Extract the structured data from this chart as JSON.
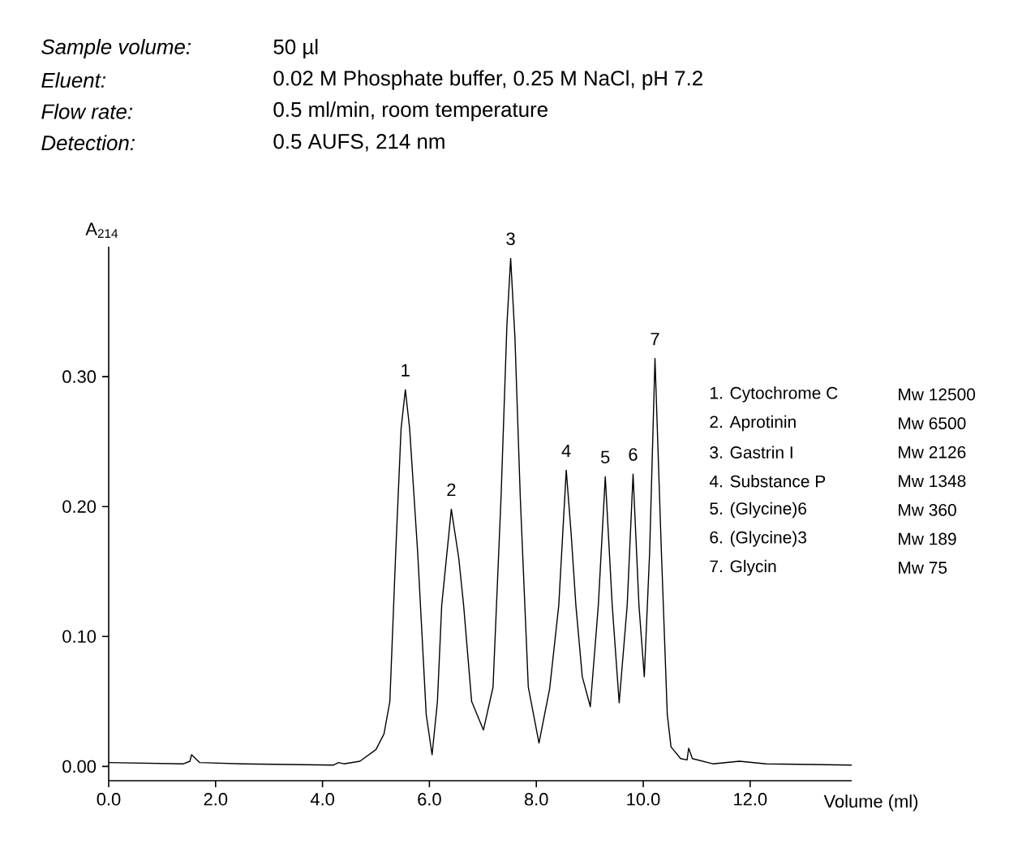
{
  "chart_data": {
    "type": "line",
    "ylabel": "A$_{214}$",
    "xlabel": "Volume (ml)",
    "xlim": [
      0,
      13.9
    ],
    "ylim": [
      -0.011,
      0.4
    ],
    "xticks": [
      {
        "value": 0,
        "label": "0.0"
      },
      {
        "value": 2,
        "label": "2.0"
      },
      {
        "value": 4,
        "label": "4.0"
      },
      {
        "value": 6,
        "label": "6.0"
      },
      {
        "value": 8,
        "label": "8.0"
      },
      {
        "value": 10,
        "label": "10.0"
      },
      {
        "value": 12,
        "label": "12.0"
      }
    ],
    "yticks": [
      {
        "value": 0,
        "label": "0.00"
      },
      {
        "value": 0.1,
        "label": "0.10"
      },
      {
        "value": 0.2,
        "label": "0.20"
      },
      {
        "value": 0.3,
        "label": "0.30"
      }
    ],
    "grid": false,
    "x": [
      0,
      1.4,
      1.52,
      1.55,
      1.7,
      2.5,
      4.2,
      4.3,
      4.4,
      4.7,
      5.0,
      5.15,
      5.26,
      5.37,
      5.47,
      5.55,
      5.63,
      5.78,
      5.94,
      6.05,
      6.15,
      6.23,
      6.41,
      6.55,
      6.64,
      6.79,
      7.01,
      7.19,
      7.34,
      7.45,
      7.52,
      7.6,
      7.7,
      7.85,
      8.05,
      8.25,
      8.42,
      8.56,
      8.65,
      8.74,
      8.86,
      9.01,
      9.16,
      9.29,
      9.42,
      9.55,
      9.7,
      9.81,
      9.92,
      10.02,
      10.12,
      10.22,
      10.34,
      10.45,
      10.52,
      10.7,
      10.82,
      10.85,
      10.92,
      11.3,
      11.8,
      12.3,
      13.9
    ],
    "series": [
      {
        "color": "#000000",
        "values": [
          0.003,
          0.002,
          0.004,
          0.009,
          0.003,
          0.002,
          0.001,
          0.003,
          0.002,
          0.004,
          0.013,
          0.025,
          0.05,
          0.165,
          0.26,
          0.29,
          0.26,
          0.165,
          0.04,
          0.009,
          0.05,
          0.124,
          0.198,
          0.16,
          0.124,
          0.05,
          0.028,
          0.061,
          0.207,
          0.34,
          0.391,
          0.33,
          0.207,
          0.061,
          0.018,
          0.06,
          0.124,
          0.228,
          0.18,
          0.124,
          0.069,
          0.046,
          0.124,
          0.223,
          0.124,
          0.049,
          0.124,
          0.225,
          0.124,
          0.069,
          0.165,
          0.314,
          0.165,
          0.04,
          0.015,
          0.006,
          0.005,
          0.014,
          0.006,
          0.002,
          0.004,
          0.002,
          0.001
        ]
      }
    ],
    "annotations": [
      "Sample volume:",
      "50 µl",
      "Eluent:",
      "0.02 M Phosphate buffer, 0.25 M NaCl, pH 7.2",
      "Flow rate:",
      "0.5 ml/min, room temperature",
      "Detection:",
      "0.5 AUFS, 214 nm",
      {
        "text": "1",
        "x": 5.55,
        "y": 0.29
      },
      {
        "text": "2",
        "x": 6.41,
        "y": 0.198
      },
      {
        "text": "3",
        "x": 7.52,
        "y": 0.391
      },
      {
        "text": "4",
        "x": 8.56,
        "y": 0.228
      },
      {
        "text": "5",
        "x": 9.29,
        "y": 0.223
      },
      {
        "text": "6",
        "x": 9.81,
        "y": 0.225
      },
      {
        "text": "7",
        "x": 10.22,
        "y": 0.314
      },
      "1. Cytochrome C",
      "Mw 12500",
      "2. Aprotinin",
      "Mw 6500",
      "3. Gastrin I",
      "Mw 2126",
      "4. Substance P",
      "Mw 1348",
      "5. (Glycine)6",
      "Mw 360",
      "6. (Glycine)3",
      "Mw 189",
      "7. Glycin",
      "Mw 75"
    ]
  }
}
